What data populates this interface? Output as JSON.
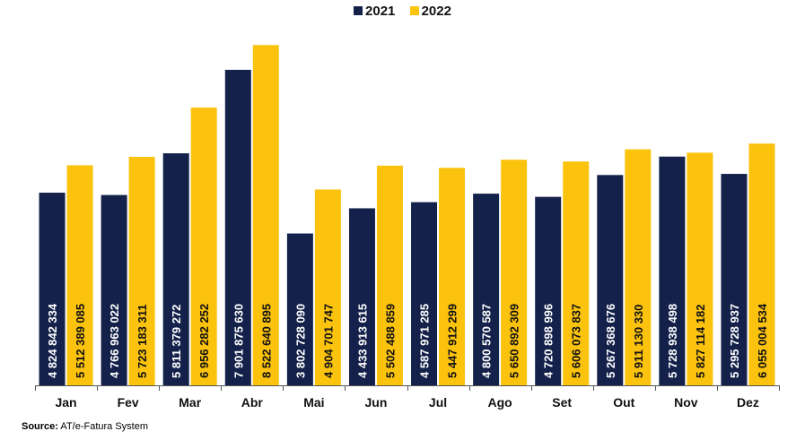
{
  "legend": {
    "s2021": "2021",
    "s2022": "2022"
  },
  "source": {
    "label": "Source:",
    "text": "AT/e-Fatura System"
  },
  "colors": {
    "s2021": "#14214a",
    "s2022": "#fbc30e",
    "axis": "#555555"
  },
  "chart_data": {
    "type": "bar",
    "categories": [
      "Jan",
      "Fev",
      "Mar",
      "Abr",
      "Mai",
      "Jun",
      "Jul",
      "Ago",
      "Set",
      "Out",
      "Nov",
      "Dez"
    ],
    "series": [
      {
        "name": "2021",
        "values": [
          4824842334,
          4766963022,
          5811379272,
          7901875630,
          3802728090,
          4433913615,
          4587971285,
          4800570587,
          4720898996,
          5267368676,
          5728938498,
          5295728937
        ],
        "labels": [
          "4 824 842 334",
          "4 766 963 022",
          "5 811 379 272",
          "7 901 875 630",
          "3 802 728 090",
          "4 433 913 615",
          "4 587 971 285",
          "4 800 570 587",
          "4 720 898 996",
          "5 267 368 676",
          "5 728 938 498",
          "5 295 728 937"
        ]
      },
      {
        "name": "2022",
        "values": [
          5512389085,
          5723183311,
          6956282252,
          8522640895,
          4904701747,
          5502488859,
          5447912299,
          5650892309,
          5606073837,
          5911130330,
          5827114182,
          6055004534
        ],
        "labels": [
          "5 512 389 085",
          "5 723 183 311",
          "6 956 282 252",
          "8 522 640 895",
          "4 904 701 747",
          "5 502 488 859",
          "5 447 912 299",
          "5 650 892 309",
          "5 606 073 837",
          "5 911 130 330",
          "5 827 114 182",
          "6 055 004 534"
        ]
      }
    ],
    "ylim": [
      0,
      9000000000
    ],
    "grid": false,
    "legend_position": "top-center"
  }
}
